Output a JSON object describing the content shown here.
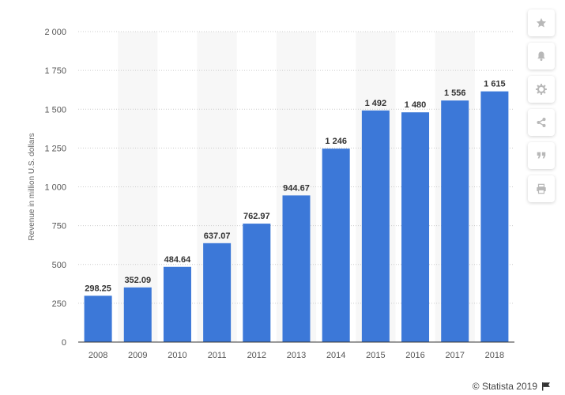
{
  "chart_data": {
    "type": "bar",
    "categories": [
      "2008",
      "2009",
      "2010",
      "2011",
      "2012",
      "2013",
      "2014",
      "2015",
      "2016",
      "2017",
      "2018"
    ],
    "values": [
      298.25,
      352.09,
      484.64,
      637.07,
      762.97,
      944.67,
      1246,
      1492,
      1480,
      1556,
      1615
    ],
    "value_labels": [
      "298.25",
      "352.09",
      "484.64",
      "637.07",
      "762.97",
      "944.67",
      "1 246",
      "1 492",
      "1 480",
      "1 556",
      "1 615"
    ],
    "yticks": [
      0,
      250,
      500,
      750,
      1000,
      1250,
      1500,
      1750,
      2000
    ],
    "ytick_labels": [
      "0",
      "250",
      "500",
      "750",
      "1 000",
      "1 250",
      "1 500",
      "1 750",
      "2 000"
    ],
    "ylim": [
      0,
      2000
    ],
    "ylabel": "Revenue in million U.S. dollars",
    "xlabel": "",
    "title": "",
    "grid": true,
    "bar_color": "#3c78d8",
    "band_color": "#f7f7f7"
  },
  "sidebar": {
    "buttons": [
      {
        "icon": "star-icon",
        "name": "favorite-button"
      },
      {
        "icon": "bell-icon",
        "name": "notification-button"
      },
      {
        "icon": "gear-icon",
        "name": "settings-button"
      },
      {
        "icon": "share-icon",
        "name": "share-button"
      },
      {
        "icon": "quote-icon",
        "name": "cite-button"
      },
      {
        "icon": "print-icon",
        "name": "print-button"
      }
    ],
    "icon_color": "#b8b8b8"
  },
  "credit": {
    "text": "© Statista 2019"
  }
}
